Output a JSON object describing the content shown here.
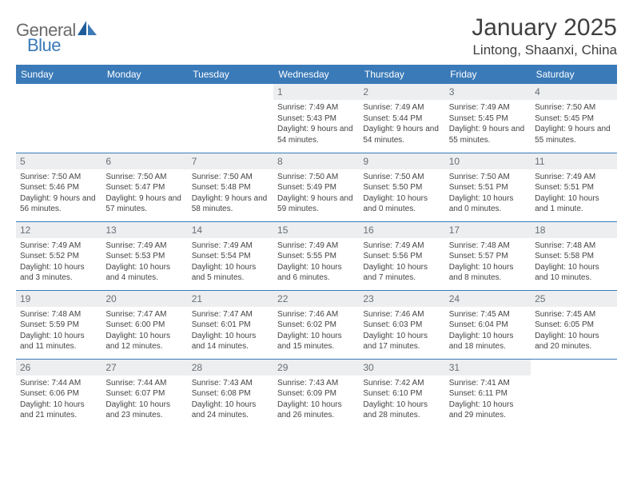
{
  "brand": {
    "name_part1": "General",
    "name_part2": "Blue"
  },
  "title": "January 2025",
  "location": "Lintong, Shaanxi, China",
  "colors": {
    "header_bg": "#3a7ab8",
    "header_fg": "#ffffff",
    "daynum_bg": "#eceef0",
    "daynum_fg": "#6a6e73",
    "grid_border": "#3a7ab8",
    "text": "#404040"
  },
  "day_headers": [
    "Sunday",
    "Monday",
    "Tuesday",
    "Wednesday",
    "Thursday",
    "Friday",
    "Saturday"
  ],
  "weeks": [
    [
      {
        "n": "",
        "sunrise": "",
        "sunset": "",
        "daylight": ""
      },
      {
        "n": "",
        "sunrise": "",
        "sunset": "",
        "daylight": ""
      },
      {
        "n": "",
        "sunrise": "",
        "sunset": "",
        "daylight": ""
      },
      {
        "n": "1",
        "sunrise": "Sunrise: 7:49 AM",
        "sunset": "Sunset: 5:43 PM",
        "daylight": "Daylight: 9 hours and 54 minutes."
      },
      {
        "n": "2",
        "sunrise": "Sunrise: 7:49 AM",
        "sunset": "Sunset: 5:44 PM",
        "daylight": "Daylight: 9 hours and 54 minutes."
      },
      {
        "n": "3",
        "sunrise": "Sunrise: 7:49 AM",
        "sunset": "Sunset: 5:45 PM",
        "daylight": "Daylight: 9 hours and 55 minutes."
      },
      {
        "n": "4",
        "sunrise": "Sunrise: 7:50 AM",
        "sunset": "Sunset: 5:45 PM",
        "daylight": "Daylight: 9 hours and 55 minutes."
      }
    ],
    [
      {
        "n": "5",
        "sunrise": "Sunrise: 7:50 AM",
        "sunset": "Sunset: 5:46 PM",
        "daylight": "Daylight: 9 hours and 56 minutes."
      },
      {
        "n": "6",
        "sunrise": "Sunrise: 7:50 AM",
        "sunset": "Sunset: 5:47 PM",
        "daylight": "Daylight: 9 hours and 57 minutes."
      },
      {
        "n": "7",
        "sunrise": "Sunrise: 7:50 AM",
        "sunset": "Sunset: 5:48 PM",
        "daylight": "Daylight: 9 hours and 58 minutes."
      },
      {
        "n": "8",
        "sunrise": "Sunrise: 7:50 AM",
        "sunset": "Sunset: 5:49 PM",
        "daylight": "Daylight: 9 hours and 59 minutes."
      },
      {
        "n": "9",
        "sunrise": "Sunrise: 7:50 AM",
        "sunset": "Sunset: 5:50 PM",
        "daylight": "Daylight: 10 hours and 0 minutes."
      },
      {
        "n": "10",
        "sunrise": "Sunrise: 7:50 AM",
        "sunset": "Sunset: 5:51 PM",
        "daylight": "Daylight: 10 hours and 0 minutes."
      },
      {
        "n": "11",
        "sunrise": "Sunrise: 7:49 AM",
        "sunset": "Sunset: 5:51 PM",
        "daylight": "Daylight: 10 hours and 1 minute."
      }
    ],
    [
      {
        "n": "12",
        "sunrise": "Sunrise: 7:49 AM",
        "sunset": "Sunset: 5:52 PM",
        "daylight": "Daylight: 10 hours and 3 minutes."
      },
      {
        "n": "13",
        "sunrise": "Sunrise: 7:49 AM",
        "sunset": "Sunset: 5:53 PM",
        "daylight": "Daylight: 10 hours and 4 minutes."
      },
      {
        "n": "14",
        "sunrise": "Sunrise: 7:49 AM",
        "sunset": "Sunset: 5:54 PM",
        "daylight": "Daylight: 10 hours and 5 minutes."
      },
      {
        "n": "15",
        "sunrise": "Sunrise: 7:49 AM",
        "sunset": "Sunset: 5:55 PM",
        "daylight": "Daylight: 10 hours and 6 minutes."
      },
      {
        "n": "16",
        "sunrise": "Sunrise: 7:49 AM",
        "sunset": "Sunset: 5:56 PM",
        "daylight": "Daylight: 10 hours and 7 minutes."
      },
      {
        "n": "17",
        "sunrise": "Sunrise: 7:48 AM",
        "sunset": "Sunset: 5:57 PM",
        "daylight": "Daylight: 10 hours and 8 minutes."
      },
      {
        "n": "18",
        "sunrise": "Sunrise: 7:48 AM",
        "sunset": "Sunset: 5:58 PM",
        "daylight": "Daylight: 10 hours and 10 minutes."
      }
    ],
    [
      {
        "n": "19",
        "sunrise": "Sunrise: 7:48 AM",
        "sunset": "Sunset: 5:59 PM",
        "daylight": "Daylight: 10 hours and 11 minutes."
      },
      {
        "n": "20",
        "sunrise": "Sunrise: 7:47 AM",
        "sunset": "Sunset: 6:00 PM",
        "daylight": "Daylight: 10 hours and 12 minutes."
      },
      {
        "n": "21",
        "sunrise": "Sunrise: 7:47 AM",
        "sunset": "Sunset: 6:01 PM",
        "daylight": "Daylight: 10 hours and 14 minutes."
      },
      {
        "n": "22",
        "sunrise": "Sunrise: 7:46 AM",
        "sunset": "Sunset: 6:02 PM",
        "daylight": "Daylight: 10 hours and 15 minutes."
      },
      {
        "n": "23",
        "sunrise": "Sunrise: 7:46 AM",
        "sunset": "Sunset: 6:03 PM",
        "daylight": "Daylight: 10 hours and 17 minutes."
      },
      {
        "n": "24",
        "sunrise": "Sunrise: 7:45 AM",
        "sunset": "Sunset: 6:04 PM",
        "daylight": "Daylight: 10 hours and 18 minutes."
      },
      {
        "n": "25",
        "sunrise": "Sunrise: 7:45 AM",
        "sunset": "Sunset: 6:05 PM",
        "daylight": "Daylight: 10 hours and 20 minutes."
      }
    ],
    [
      {
        "n": "26",
        "sunrise": "Sunrise: 7:44 AM",
        "sunset": "Sunset: 6:06 PM",
        "daylight": "Daylight: 10 hours and 21 minutes."
      },
      {
        "n": "27",
        "sunrise": "Sunrise: 7:44 AM",
        "sunset": "Sunset: 6:07 PM",
        "daylight": "Daylight: 10 hours and 23 minutes."
      },
      {
        "n": "28",
        "sunrise": "Sunrise: 7:43 AM",
        "sunset": "Sunset: 6:08 PM",
        "daylight": "Daylight: 10 hours and 24 minutes."
      },
      {
        "n": "29",
        "sunrise": "Sunrise: 7:43 AM",
        "sunset": "Sunset: 6:09 PM",
        "daylight": "Daylight: 10 hours and 26 minutes."
      },
      {
        "n": "30",
        "sunrise": "Sunrise: 7:42 AM",
        "sunset": "Sunset: 6:10 PM",
        "daylight": "Daylight: 10 hours and 28 minutes."
      },
      {
        "n": "31",
        "sunrise": "Sunrise: 7:41 AM",
        "sunset": "Sunset: 6:11 PM",
        "daylight": "Daylight: 10 hours and 29 minutes."
      },
      {
        "n": "",
        "sunrise": "",
        "sunset": "",
        "daylight": ""
      }
    ]
  ]
}
